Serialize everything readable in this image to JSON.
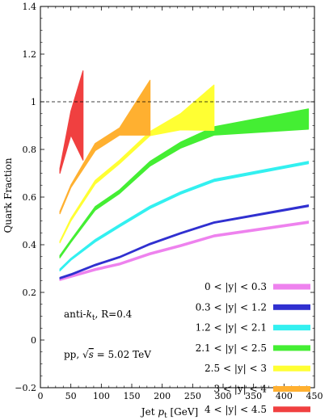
{
  "chart_data": {
    "type": "area",
    "title": "",
    "xlabel_parts": [
      "Jet ",
      "p",
      "t",
      " [GeV]"
    ],
    "ylabel": "Quark Fraction",
    "xlim": [
      0,
      450
    ],
    "ylim": [
      -0.2,
      1.4
    ],
    "xticks": [
      0,
      50,
      100,
      150,
      200,
      250,
      300,
      350,
      400,
      450
    ],
    "yticks": [
      -0.2,
      0,
      0.2,
      0.4,
      0.6,
      0.8,
      1,
      1.2,
      1.4
    ],
    "xtick_labels": [
      "0",
      "50",
      "100",
      "150",
      "200",
      "250",
      "300",
      "350",
      "400",
      "450"
    ],
    "ytick_labels": [
      "−0.2",
      "0",
      "0.2",
      "0.4",
      "0.6",
      "0.8",
      "1",
      "1.2",
      "1.4"
    ],
    "grid": false,
    "reference_line": {
      "y": 1.0,
      "style": "dashed"
    },
    "legend": {
      "placement": "bottom-right"
    },
    "annotations": {
      "algo": [
        "anti-",
        "k",
        "t",
        ", R=0.4"
      ],
      "system": [
        "pp, ",
        "√",
        "s",
        " = 5.02 TeV"
      ]
    },
    "series": [
      {
        "name": "0 < |y| < 0.3",
        "color": "#ee82ee",
        "x": [
          32,
          50,
          90,
          130,
          180,
          230,
          285,
          440
        ],
        "low": [
          0.25,
          0.263,
          0.292,
          0.315,
          0.358,
          0.392,
          0.433,
          0.49
        ],
        "high": [
          0.257,
          0.271,
          0.3,
          0.323,
          0.366,
          0.4,
          0.441,
          0.499
        ]
      },
      {
        "name": "0.3 < |y| < 1.2",
        "color": "#3030d0",
        "x": [
          32,
          50,
          90,
          130,
          180,
          230,
          285,
          440
        ],
        "low": [
          0.257,
          0.272,
          0.312,
          0.345,
          0.4,
          0.445,
          0.49,
          0.56
        ],
        "high": [
          0.263,
          0.278,
          0.318,
          0.351,
          0.406,
          0.451,
          0.496,
          0.567
        ]
      },
      {
        "name": "1.2 < |y| < 2.1",
        "color": "#33f0f0",
        "x": [
          32,
          50,
          90,
          130,
          180,
          230,
          285,
          440
        ],
        "low": [
          0.29,
          0.335,
          0.412,
          0.475,
          0.552,
          0.612,
          0.665,
          0.74
        ],
        "high": [
          0.298,
          0.343,
          0.422,
          0.485,
          0.562,
          0.622,
          0.675,
          0.75
        ]
      },
      {
        "name": "2.1 < |y| < 2.5",
        "color": "#44ee33",
        "x": [
          32,
          50,
          90,
          130,
          180,
          230,
          285,
          440
        ],
        "low": [
          0.345,
          0.41,
          0.545,
          0.615,
          0.73,
          0.805,
          0.86,
          0.885
        ],
        "high": [
          0.355,
          0.42,
          0.56,
          0.63,
          0.75,
          0.83,
          0.895,
          0.97
        ]
      },
      {
        "name": "2.5 < |y| < 3",
        "color": "#ffff33",
        "x": [
          32,
          50,
          90,
          130,
          180,
          230,
          285
        ],
        "low": [
          0.408,
          0.5,
          0.655,
          0.74,
          0.858,
          0.882,
          0.88
        ],
        "high": [
          0.415,
          0.51,
          0.67,
          0.755,
          0.875,
          0.95,
          1.07
        ]
      },
      {
        "name": "3 < |y| < 4",
        "color": "#ffb030",
        "x": [
          32,
          50,
          90,
          130,
          180
        ],
        "low": [
          0.53,
          0.64,
          0.795,
          0.86,
          0.86
        ],
        "high": [
          0.54,
          0.65,
          0.825,
          0.89,
          1.09
        ]
      },
      {
        "name": "4 < |y| < 4.5",
        "color": "#f04040",
        "x": [
          32,
          50,
          70
        ],
        "low": [
          0.7,
          0.86,
          0.755
        ],
        "high": [
          0.72,
          0.96,
          1.13
        ]
      }
    ]
  }
}
